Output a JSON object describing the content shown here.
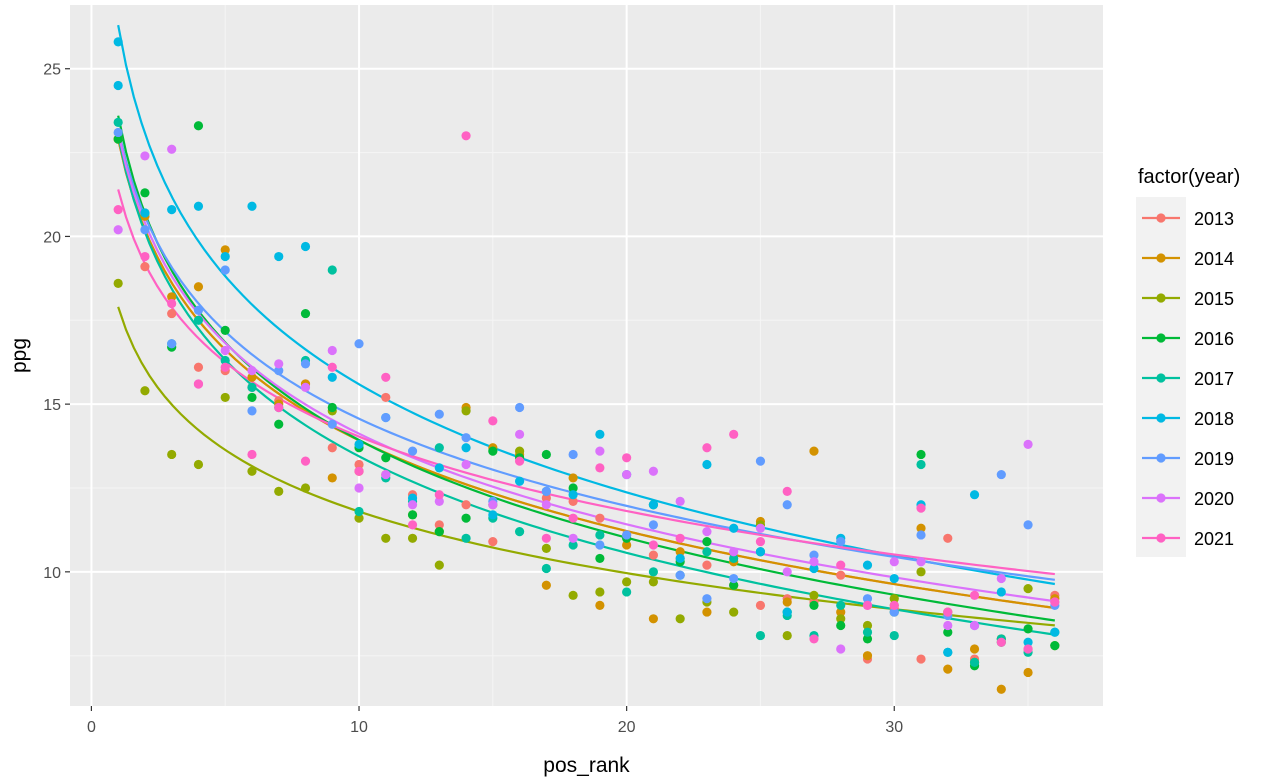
{
  "chart_data": {
    "type": "scatter",
    "title": "",
    "xlabel": "pos_rank",
    "ylabel": "ppg",
    "xlim": [
      -0.8,
      37.8
    ],
    "ylim": [
      6.0,
      26.9
    ],
    "xticks": [
      0,
      10,
      20,
      30
    ],
    "yticks": [
      10,
      15,
      20,
      25
    ],
    "x_tick_labels": [
      "0",
      "10",
      "20",
      "30"
    ],
    "y_tick_labels": [
      "10",
      "15",
      "20",
      "25"
    ],
    "grid": true,
    "legend_title": "factor(year)",
    "legend_position": "right",
    "fit": "logarithmic",
    "series": [
      {
        "name": "2013",
        "color": "#F8766D",
        "fit_a": 22.9,
        "fit_b": -3.9,
        "x": [
          1,
          2,
          3,
          4,
          5,
          6,
          7,
          8,
          9,
          10,
          11,
          12,
          13,
          14,
          15,
          17,
          18,
          19,
          20,
          21,
          22,
          23,
          24,
          25,
          26,
          27,
          28,
          29,
          30,
          31,
          32,
          33,
          34,
          35,
          36
        ],
        "y": [
          22.9,
          19.1,
          17.7,
          16.1,
          16.0,
          15.5,
          15.1,
          15.6,
          13.7,
          13.2,
          15.2,
          12.3,
          11.4,
          12.0,
          10.9,
          12.2,
          12.1,
          11.6,
          11.1,
          10.5,
          10.4,
          10.2,
          9.6,
          9.0,
          9.2,
          9.1,
          9.9,
          7.4,
          8.9,
          7.4,
          11.0,
          7.4,
          8.0,
          7.7,
          9.3
        ]
      },
      {
        "name": "2014",
        "color": "#D39200",
        "fit_a": 22.9,
        "fit_b": -3.9,
        "x": [
          1,
          2,
          3,
          4,
          5,
          6,
          7,
          8,
          9,
          10,
          11,
          12,
          13,
          14,
          15,
          16,
          17,
          18,
          19,
          20,
          21,
          22,
          23,
          24,
          25,
          26,
          27,
          28,
          29,
          30,
          31,
          32,
          33,
          34,
          35,
          36
        ],
        "y": [
          22.9,
          20.6,
          18.2,
          18.5,
          19.6,
          15.8,
          15.0,
          15.6,
          12.8,
          13.0,
          12.9,
          11.7,
          11.2,
          14.9,
          13.7,
          13.5,
          9.6,
          12.8,
          9.0,
          10.8,
          8.6,
          10.6,
          8.8,
          10.3,
          11.5,
          9.1,
          13.6,
          8.8,
          7.5,
          9.0,
          11.3,
          7.1,
          7.7,
          6.5,
          7.0,
          9.2
        ]
      },
      {
        "name": "2015",
        "color": "#93AA00",
        "fit_a": 17.9,
        "fit_b": -2.65,
        "x": [
          1,
          2,
          3,
          4,
          5,
          6,
          7,
          8,
          9,
          10,
          11,
          12,
          13,
          14,
          15,
          16,
          17,
          18,
          19,
          20,
          21,
          22,
          23,
          24,
          25,
          26,
          27,
          28,
          29,
          30,
          31,
          32,
          33,
          34,
          35,
          36
        ],
        "y": [
          18.6,
          15.4,
          13.5,
          13.2,
          15.2,
          13.0,
          12.4,
          12.5,
          14.8,
          11.6,
          11.0,
          11.0,
          10.2,
          14.8,
          12.0,
          13.6,
          10.7,
          9.3,
          9.4,
          9.7,
          9.7,
          8.6,
          9.1,
          8.8,
          11.4,
          8.1,
          9.3,
          8.6,
          8.4,
          9.2,
          10.0,
          8.8,
          7.3,
          8.0,
          9.5,
          7.8
        ]
      },
      {
        "name": "2016",
        "color": "#00BA38",
        "fit_a": 23.6,
        "fit_b": -4.2,
        "x": [
          1,
          2,
          3,
          4,
          5,
          6,
          7,
          8,
          9,
          10,
          11,
          12,
          13,
          14,
          15,
          16,
          17,
          18,
          19,
          20,
          21,
          22,
          23,
          24,
          25,
          26,
          27,
          28,
          29,
          30,
          31,
          32,
          33,
          34,
          35,
          36
        ],
        "y": [
          22.9,
          21.3,
          16.7,
          23.3,
          17.2,
          15.2,
          14.4,
          17.7,
          14.9,
          13.7,
          13.4,
          11.7,
          11.2,
          11.6,
          13.6,
          13.4,
          13.5,
          12.5,
          10.4,
          11.0,
          12.0,
          10.3,
          10.9,
          9.6,
          10.6,
          8.8,
          9.0,
          8.4,
          8.0,
          8.8,
          13.5,
          8.2,
          7.2,
          7.9,
          8.3,
          7.8
        ]
      },
      {
        "name": "2017",
        "color": "#00C19F",
        "fit_a": 23.0,
        "fit_b": -4.15,
        "x": [
          1,
          2,
          3,
          4,
          5,
          6,
          7,
          8,
          9,
          10,
          11,
          12,
          13,
          14,
          15,
          16,
          17,
          18,
          19,
          20,
          21,
          22,
          23,
          24,
          25,
          26,
          27,
          28,
          29,
          30,
          31,
          32,
          33,
          34,
          35,
          36
        ],
        "y": [
          23.4,
          20.7,
          16.8,
          17.5,
          16.3,
          15.5,
          14.9,
          16.3,
          19.0,
          11.8,
          12.8,
          12.1,
          13.7,
          11.0,
          11.6,
          11.2,
          10.1,
          10.8,
          11.1,
          9.4,
          10.0,
          9.9,
          10.6,
          10.4,
          8.1,
          8.7,
          8.1,
          9.0,
          8.2,
          8.1,
          13.2,
          7.6,
          7.3,
          8.0,
          7.6,
          8.2
        ]
      },
      {
        "name": "2018",
        "color": "#00B9E3",
        "fit_a": 26.3,
        "fit_b": -4.65,
        "x": [
          1,
          1,
          2,
          3,
          4,
          5,
          6,
          7,
          8,
          9,
          10,
          11,
          12,
          13,
          14,
          15,
          16,
          17,
          18,
          19,
          20,
          21,
          22,
          23,
          24,
          25,
          26,
          27,
          28,
          29,
          30,
          31,
          32,
          33,
          34,
          35,
          36
        ],
        "y": [
          25.8,
          24.5,
          20.7,
          20.8,
          20.9,
          19.4,
          20.9,
          19.4,
          19.7,
          15.8,
          13.8,
          14.6,
          12.2,
          13.1,
          13.7,
          11.7,
          12.7,
          12.4,
          12.3,
          14.1,
          12.9,
          12.0,
          10.4,
          13.2,
          11.3,
          10.6,
          8.8,
          10.1,
          11.0,
          10.2,
          9.8,
          12.0,
          7.6,
          12.3,
          9.4,
          7.9,
          8.2
        ]
      },
      {
        "name": "2019",
        "color": "#619CFF",
        "fit_a": 23.2,
        "fit_b": -3.75,
        "x": [
          1,
          2,
          3,
          4,
          5,
          6,
          7,
          8,
          9,
          10,
          11,
          12,
          13,
          14,
          15,
          16,
          17,
          18,
          19,
          20,
          21,
          22,
          23,
          24,
          25,
          26,
          27,
          28,
          29,
          30,
          31,
          32,
          33,
          34,
          35,
          36
        ],
        "y": [
          23.1,
          20.2,
          16.8,
          17.8,
          19.0,
          14.8,
          16.0,
          16.2,
          14.4,
          16.8,
          14.6,
          13.6,
          14.7,
          14.0,
          12.1,
          14.9,
          12.4,
          13.5,
          10.8,
          11.1,
          11.4,
          9.9,
          9.2,
          9.8,
          13.3,
          12.0,
          10.5,
          10.9,
          9.2,
          8.8,
          11.1,
          8.7,
          8.4,
          12.9,
          11.4,
          9.0
        ]
      },
      {
        "name": "2020",
        "color": "#DB72FB",
        "fit_a": 23.1,
        "fit_b": -3.9,
        "x": [
          1,
          2,
          3,
          4,
          5,
          6,
          7,
          8,
          9,
          10,
          11,
          12,
          13,
          14,
          15,
          16,
          17,
          18,
          19,
          20,
          21,
          22,
          23,
          24,
          25,
          26,
          27,
          28,
          29,
          30,
          31,
          32,
          33,
          34,
          35,
          36
        ],
        "y": [
          20.2,
          22.4,
          22.6,
          15.6,
          16.6,
          16.0,
          16.2,
          15.5,
          16.6,
          12.5,
          12.9,
          12.0,
          12.1,
          13.2,
          12.0,
          14.1,
          12.0,
          11.0,
          13.6,
          12.9,
          13.0,
          12.1,
          11.2,
          10.6,
          11.3,
          10.0,
          10.3,
          7.7,
          9.0,
          10.3,
          10.3,
          8.4,
          8.4,
          9.8,
          13.8,
          9.1
        ]
      },
      {
        "name": "2021",
        "color": "#FF61C3",
        "fit_a": 21.4,
        "fit_b": -3.2,
        "x": [
          1,
          2,
          3,
          4,
          5,
          6,
          7,
          8,
          9,
          10,
          11,
          12,
          13,
          14,
          15,
          16,
          17,
          18,
          19,
          20,
          21,
          22,
          23,
          24,
          25,
          26,
          27,
          28,
          29,
          30,
          31,
          32,
          33,
          34,
          35,
          36
        ],
        "y": [
          20.8,
          19.4,
          18.0,
          15.6,
          16.1,
          13.5,
          14.9,
          13.3,
          16.1,
          13.0,
          15.8,
          11.4,
          12.3,
          23.0,
          14.5,
          13.3,
          11.0,
          11.6,
          13.1,
          13.4,
          10.8,
          11.0,
          13.7,
          14.1,
          10.9,
          12.4,
          8.0,
          10.2,
          9.0,
          9.0,
          11.9,
          8.8,
          9.3,
          7.9,
          7.7,
          9.1
        ]
      }
    ]
  }
}
